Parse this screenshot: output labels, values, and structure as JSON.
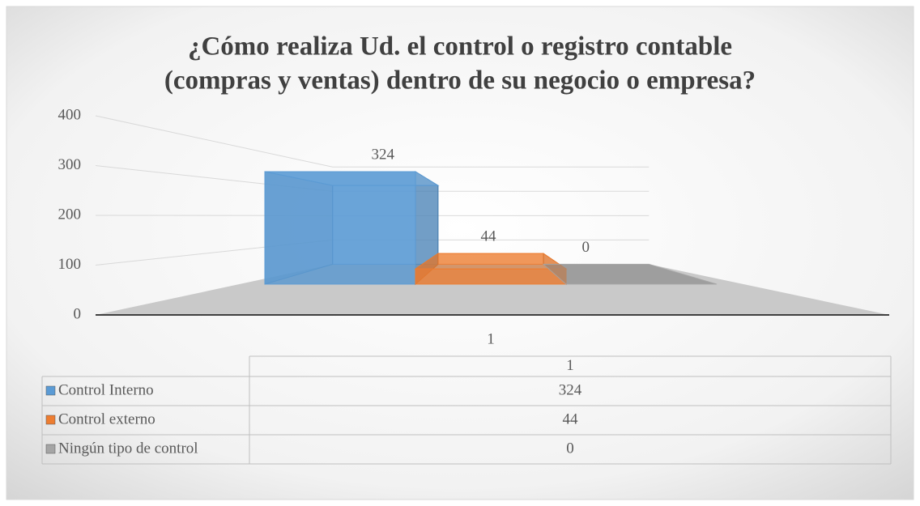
{
  "chart_data": {
    "type": "bar3d",
    "title": [
      "¿Cómo realiza Ud. el control o registro contable",
      "(compras y ventas) dentro de su negocio o empresa?"
    ],
    "categories": [
      "1"
    ],
    "series": [
      {
        "name": "Control Interno",
        "color": "#5b9bd5",
        "values": [
          324
        ]
      },
      {
        "name": "Control externo",
        "color": "#ed7d31",
        "values": [
          44
        ]
      },
      {
        "name": "Ningún tipo de control",
        "color": "#a5a5a5",
        "values": [
          0
        ]
      }
    ],
    "ylim": [
      0,
      400
    ],
    "yticks": [
      0,
      100,
      200,
      300,
      400
    ],
    "grid": true,
    "data_table": true
  }
}
